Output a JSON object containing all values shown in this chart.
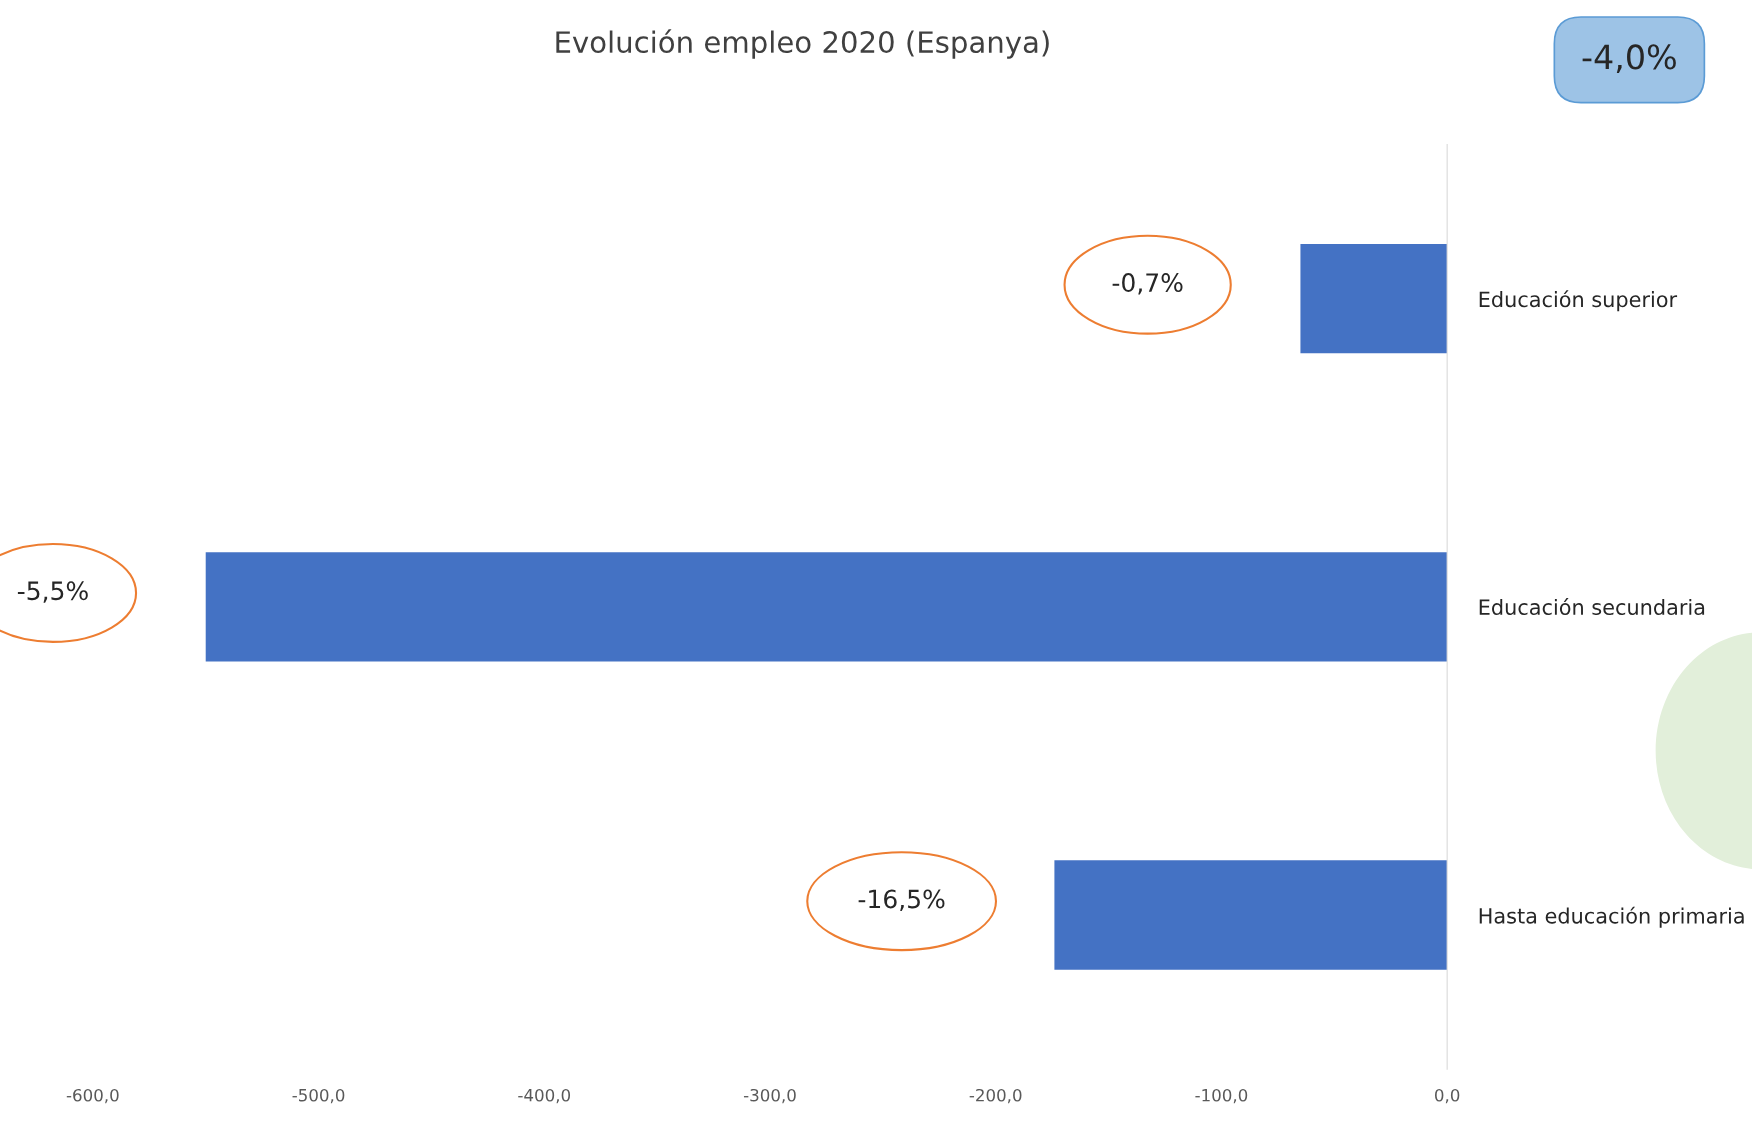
{
  "chart_data": {
    "type": "bar",
    "orientation": "horizontal",
    "title": "Evolución empleo 2020 (Espanya)",
    "categories": [
      "Educación superior",
      "Educación secundaria",
      "Hasta educación primaria"
    ],
    "values": [
      -65,
      -550,
      -174
    ],
    "color": "#4472c4",
    "xlim": [
      -600,
      0
    ],
    "xticks": [
      {
        "value": -600,
        "label": "-600,0"
      },
      {
        "value": -500,
        "label": "-500,0"
      },
      {
        "value": -400,
        "label": "-400,0"
      },
      {
        "value": -300,
        "label": "-300,0"
      },
      {
        "value": -200,
        "label": "-200,0"
      },
      {
        "value": -100,
        "label": "-100,0"
      },
      {
        "value": 0,
        "label": "0,0"
      }
    ],
    "grid": false,
    "annotations": [
      "-0,7%",
      "-5,5%",
      "-16,5%",
      "-4,0%"
    ]
  }
}
